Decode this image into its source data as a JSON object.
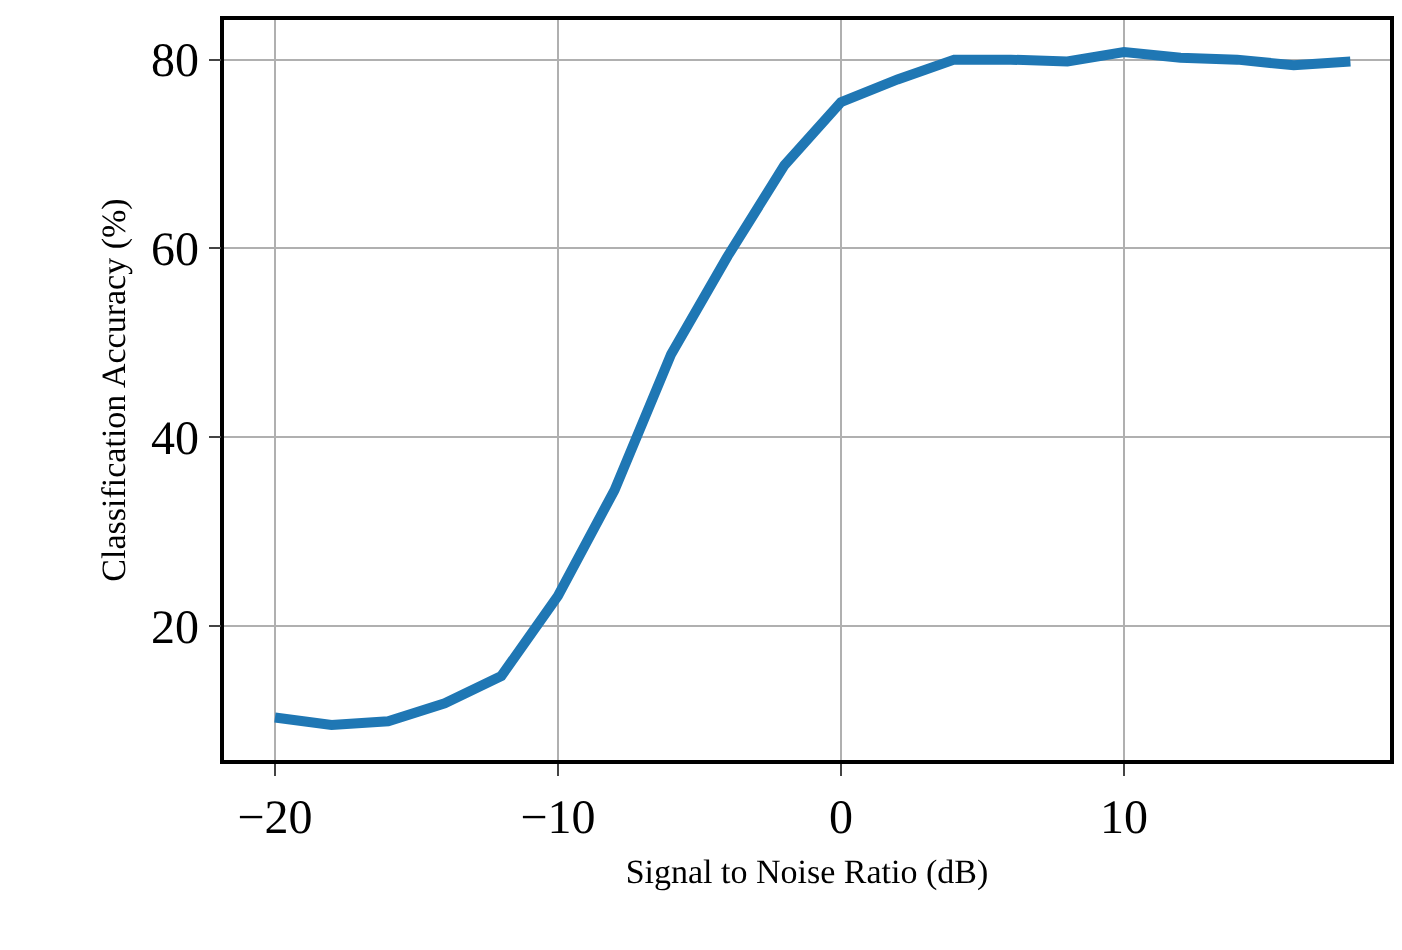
{
  "chart_data": {
    "type": "line",
    "xlabel": "Signal to Noise Ratio (dB)",
    "ylabel": "Classification Accuracy (%)",
    "x": [
      -20,
      -18,
      -16,
      -14,
      -12,
      -10,
      -8,
      -6,
      -4,
      -2,
      0,
      2,
      4,
      6,
      8,
      10,
      12,
      14,
      16,
      18
    ],
    "series": [
      {
        "color": "#1f77b4",
        "values": [
          10.3,
          9.5,
          9.9,
          11.8,
          14.7,
          23.2,
          34.4,
          48.8,
          59.2,
          68.8,
          75.5,
          77.9,
          80,
          80,
          79.8,
          80.8,
          80.2,
          80,
          79.4,
          79.8
        ]
      }
    ],
    "xlim": [
      -21.8,
      19.4
    ],
    "ylim": [
      5.8,
      84.2
    ],
    "xticks": [
      {
        "value": -20,
        "label": "−20"
      },
      {
        "value": -10,
        "label": "−10"
      },
      0,
      10
    ],
    "yticks": [
      20,
      40,
      60,
      80
    ],
    "grid": true,
    "legend": false,
    "marker": "none",
    "line_style": "solid"
  }
}
